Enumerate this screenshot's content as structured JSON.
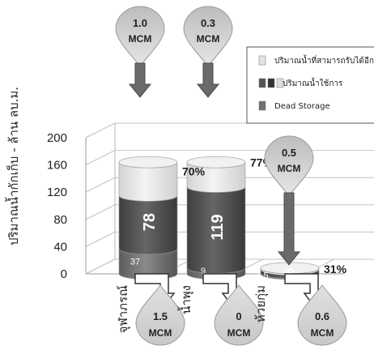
{
  "chart_data": {
    "type": "bar",
    "stacked": true,
    "ylabel": "ปริมาณน้ำกักเก็บ - ล้าน ลบ.ม.",
    "ylim": [
      0,
      200
    ],
    "yticks": [
      0,
      40,
      80,
      120,
      160,
      200
    ],
    "grid": true,
    "legend_position": "top-right",
    "categories": [
      "จุฬาภรณ์",
      "น้ำพุง",
      "ห้วยกุ่ม"
    ],
    "series": [
      {
        "name": "Dead Storage",
        "values": [
          37,
          9,
          1.5
        ],
        "color": "#6e6e6e"
      },
      {
        "name": "ปริมาณน้ำใช้การ",
        "values": [
          78,
          119,
          5
        ],
        "color": "#555555"
      },
      {
        "name": "ปริมาณน้ำที่สามารถรับได้อีก",
        "values": [
          49,
          36,
          2
        ],
        "color": "#e6e6e6"
      }
    ],
    "series_labels": {
      "Dead Storage": [
        "37",
        "9",
        "1.5"
      ],
      "ปริมาณน้ำใช้การ": [
        "78",
        "119",
        "5"
      ]
    },
    "percent_labels": [
      "70%",
      "77%",
      "31%"
    ],
    "inflow": [
      {
        "value": "1.0",
        "unit": "MCM"
      },
      {
        "value": "0.3",
        "unit": "MCM"
      },
      {
        "value": "0.5",
        "unit": "MCM"
      }
    ],
    "outflow": [
      {
        "value": "1.5",
        "unit": "MCM"
      },
      {
        "value": "0",
        "unit": "MCM"
      },
      {
        "value": "0.6",
        "unit": "MCM"
      }
    ],
    "legend": [
      {
        "label": "ปริมาณน้ำที่สามารถรับได้อีก",
        "swatches": [
          "#e2e2e2"
        ]
      },
      {
        "label": "ปริมาณน้ำใช้การ",
        "swatches": [
          "#555555",
          "#333333",
          "#dddddd"
        ]
      },
      {
        "label": "Dead Storage",
        "swatches": [
          "#707070"
        ]
      }
    ]
  }
}
